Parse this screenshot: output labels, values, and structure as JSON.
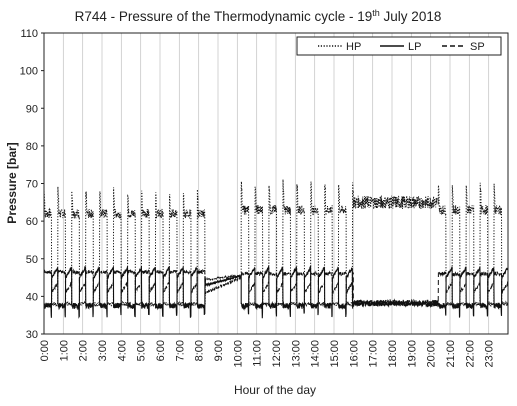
{
  "chart_data": {
    "type": "line",
    "title": "R744 - Pressure of the Thermodynamic cycle - 19",
    "title_superscript": "th",
    "title_suffix": " July 2018",
    "xlabel": "Hour of the day",
    "ylabel": "Pressure [bar]",
    "ylim": [
      30,
      110
    ],
    "xlim": [
      0,
      24
    ],
    "y_ticks": [
      30,
      40,
      50,
      60,
      70,
      80,
      90,
      100,
      110
    ],
    "x_ticks": [
      "0:00",
      "1:00",
      "2:00",
      "3:00",
      "4:00",
      "5:00",
      "6:00",
      "7:00",
      "8:00",
      "9:00",
      "10:00",
      "11:00",
      "12:00",
      "13:00",
      "14:00",
      "15:00",
      "16:00",
      "17:00",
      "18:00",
      "19:00",
      "20:00",
      "21:00",
      "22:00",
      "23:00"
    ],
    "grid": "vertical",
    "legend_position": "top-right",
    "colors": {
      "series": "#111111",
      "grid": "#c8c8c8",
      "axis": "#222222"
    },
    "series": [
      {
        "name": "HP",
        "style": "dotted",
        "description_of_behaviour": "cycles between ~62 bar (compressor on) and ~38 bar (off), with short spikes to ~68-70 bar at cycle starts; 45-46 bar during 8:30-10:00 standstill; continuous ~62-67 bar between 16:00 and 20:30",
        "phases": [
          {
            "from": 0.0,
            "to": 8.35,
            "on_level": 62,
            "off_level": 38,
            "spike": 68,
            "cycle_hours": 0.72
          },
          {
            "from": 8.35,
            "to": 10.2,
            "level_start": 44.5,
            "level_end": 45.5
          },
          {
            "from": 10.2,
            "to": 16.0,
            "on_level": 63,
            "off_level": 38,
            "spike": 70,
            "cycle_hours": 0.72
          },
          {
            "from": 16.0,
            "to": 20.4,
            "continuous_level": 65
          },
          {
            "from": 20.4,
            "to": 24.0,
            "on_level": 63,
            "off_level": 38,
            "spike": 69,
            "cycle_hours": 0.72
          }
        ]
      },
      {
        "name": "LP",
        "style": "solid",
        "description_of_behaviour": "around 37-38 bar while compressor runs, rising to ~44-46 bar when off",
        "phases": [
          {
            "from": 0.0,
            "to": 8.35,
            "on_level": 37.5,
            "off_level": 45
          },
          {
            "from": 8.35,
            "to": 10.2,
            "level_start": 43,
            "level_end": 45.5
          },
          {
            "from": 10.2,
            "to": 16.0,
            "on_level": 37.5,
            "off_level": 45
          },
          {
            "from": 16.0,
            "to": 20.4,
            "continuous_level": 38
          },
          {
            "from": 20.4,
            "to": 24.0,
            "on_level": 37.5,
            "off_level": 45
          }
        ]
      },
      {
        "name": "SP",
        "style": "dashed",
        "description_of_behaviour": "around 46-47 bar during compressor runs, 40-44 bar between cycles",
        "phases": [
          {
            "from": 0.0,
            "to": 8.35,
            "on_level": 46.5,
            "off_level": 41
          },
          {
            "from": 8.35,
            "to": 10.2,
            "level_start": 41,
            "level_end": 45
          },
          {
            "from": 10.2,
            "to": 16.0,
            "on_level": 46,
            "off_level": 41
          },
          {
            "from": 16.0,
            "to": 20.4,
            "continuous_level": 38.5
          },
          {
            "from": 20.4,
            "to": 24.0,
            "on_level": 46,
            "off_level": 41
          }
        ]
      }
    ]
  }
}
